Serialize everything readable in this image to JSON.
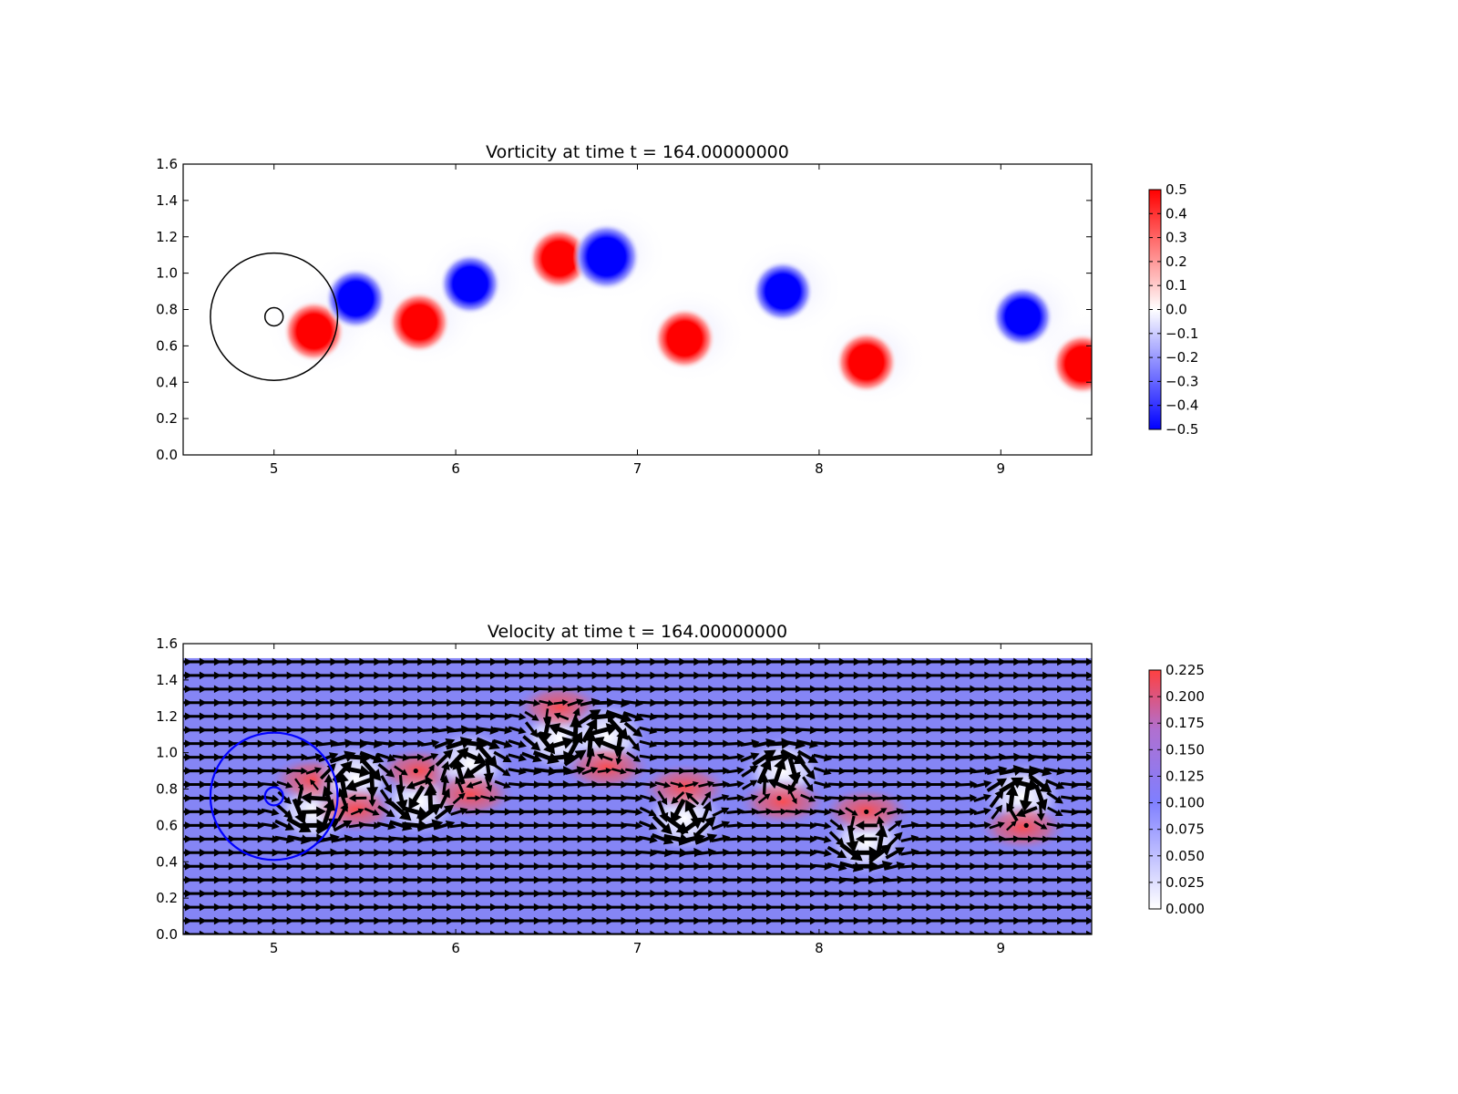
{
  "chart_data": [
    {
      "type": "heatmap",
      "title": "Vorticity at time t =   164.00000000",
      "xlabel": "",
      "ylabel": "",
      "xlim": [
        4.5,
        9.5
      ],
      "ylim": [
        0.0,
        1.6
      ],
      "x_ticks": [
        "5",
        "6",
        "7",
        "8",
        "9"
      ],
      "y_ticks": [
        "0.0",
        "0.2",
        "0.4",
        "0.6",
        "0.8",
        "1.0",
        "1.2",
        "1.4",
        "1.6"
      ],
      "colorbar": {
        "min": -0.5,
        "max": 0.5,
        "ticks": [
          "0.5",
          "0.4",
          "0.3",
          "0.2",
          "0.1",
          "0.0",
          "−0.1",
          "−0.2",
          "−0.3",
          "−0.4",
          "−0.5"
        ],
        "colors": [
          "#0000ff",
          "#ffffff",
          "#ff0000"
        ]
      },
      "annotations": [
        {
          "shape": "circle",
          "cx": 5.0,
          "cy": 0.76,
          "r": 0.35,
          "color": "#000000"
        },
        {
          "shape": "circle",
          "cx": 5.0,
          "cy": 0.76,
          "r": 0.05,
          "color": "#000000"
        }
      ],
      "vortices": [
        {
          "x": 5.22,
          "y": 0.68,
          "value": 0.5
        },
        {
          "x": 5.45,
          "y": 0.86,
          "value": -0.5
        },
        {
          "x": 5.8,
          "y": 0.73,
          "value": 0.5
        },
        {
          "x": 6.08,
          "y": 0.94,
          "value": -0.5
        },
        {
          "x": 6.57,
          "y": 1.08,
          "value": 0.5
        },
        {
          "x": 6.83,
          "y": 1.09,
          "value": -0.5
        },
        {
          "x": 7.26,
          "y": 0.64,
          "value": 0.5
        },
        {
          "x": 7.8,
          "y": 0.9,
          "value": -0.5
        },
        {
          "x": 8.26,
          "y": 0.51,
          "value": 0.5
        },
        {
          "x": 9.12,
          "y": 0.76,
          "value": -0.5
        },
        {
          "x": 9.45,
          "y": 0.5,
          "value": 0.5
        }
      ]
    },
    {
      "type": "heatmap",
      "title": "Velocity at time t =   164.00000000",
      "xlabel": "",
      "ylabel": "",
      "xlim": [
        4.5,
        9.5
      ],
      "ylim": [
        0.0,
        1.6
      ],
      "x_ticks": [
        "5",
        "6",
        "7",
        "8",
        "9"
      ],
      "y_ticks": [
        "0.0",
        "0.2",
        "0.4",
        "0.6",
        "0.8",
        "1.0",
        "1.2",
        "1.4",
        "1.6"
      ],
      "colorbar": {
        "min": 0.0,
        "max": 0.225,
        "ticks": [
          "0.225",
          "0.200",
          "0.175",
          "0.150",
          "0.125",
          "0.100",
          "0.075",
          "0.050",
          "0.025",
          "0.000"
        ],
        "colors": [
          "#ffffff",
          "#7f7fff",
          "#ff4040"
        ]
      },
      "background_value": 0.1,
      "annotations": [
        {
          "shape": "circle",
          "cx": 5.0,
          "cy": 0.76,
          "r": 0.35,
          "color": "#0000ff"
        },
        {
          "shape": "circle",
          "cx": 5.0,
          "cy": 0.76,
          "r": 0.05,
          "color": "#0000ff"
        }
      ],
      "vortices": [
        {
          "x": 5.22,
          "y": 0.68,
          "sign": 1
        },
        {
          "x": 5.45,
          "y": 0.86,
          "sign": -1
        },
        {
          "x": 5.8,
          "y": 0.73,
          "sign": 1
        },
        {
          "x": 6.08,
          "y": 0.94,
          "sign": -1
        },
        {
          "x": 6.57,
          "y": 1.08,
          "sign": 1
        },
        {
          "x": 6.83,
          "y": 1.09,
          "sign": -1
        },
        {
          "x": 7.26,
          "y": 0.64,
          "sign": 1
        },
        {
          "x": 7.8,
          "y": 0.9,
          "sign": -1
        },
        {
          "x": 8.26,
          "y": 0.51,
          "sign": 1
        },
        {
          "x": 9.12,
          "y": 0.76,
          "sign": -1
        }
      ]
    }
  ]
}
